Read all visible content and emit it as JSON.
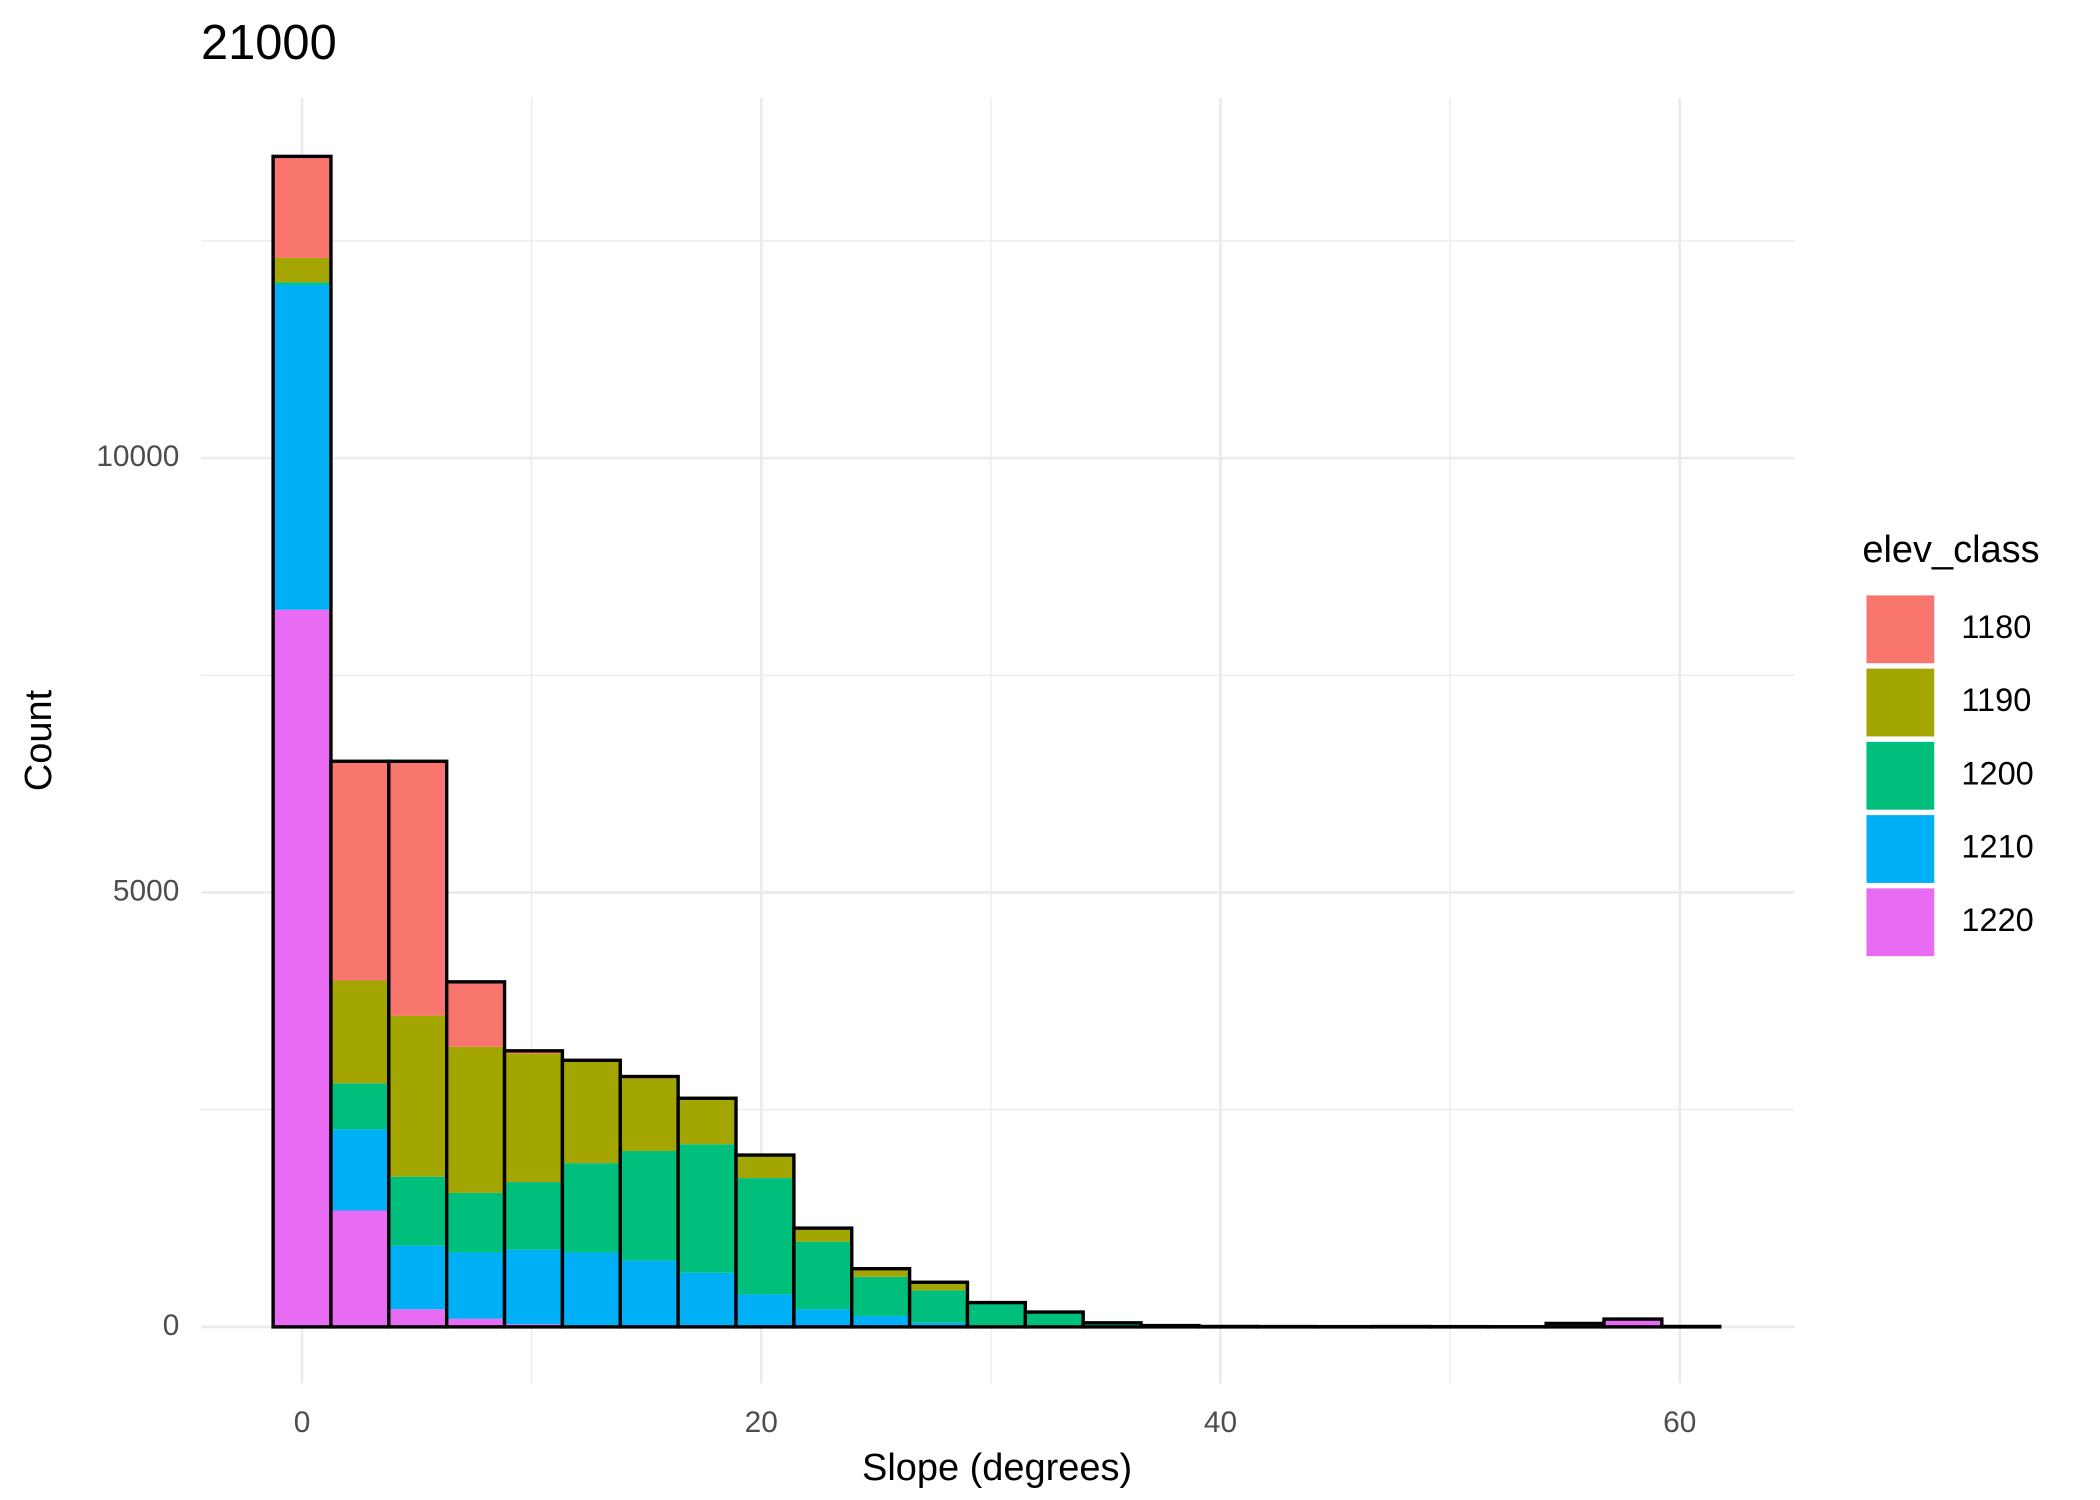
{
  "chart_data": {
    "type": "histogram_stacked",
    "title": "21000",
    "x_label": "Slope (degrees)",
    "y_label": "Count",
    "legend_title": "elev_class",
    "legend_position": "right",
    "grid": true,
    "bins": [
      -1.26,
      1.26,
      3.78,
      6.3,
      8.82,
      11.34,
      13.86,
      16.38,
      18.9,
      21.42,
      23.94,
      26.46,
      28.98,
      31.5,
      34.02,
      36.54,
      39.06,
      41.58,
      44.1,
      46.62,
      49.14,
      51.66,
      54.18,
      56.7,
      59.22,
      61.74
    ],
    "series": [
      {
        "name": "1220",
        "color": "#e76bf3",
        "values": [
          8255,
          1340,
          202,
          93,
          31,
          15,
          0,
          5,
          3,
          0,
          0,
          0,
          0,
          0,
          0,
          0,
          0,
          0,
          0,
          0,
          0,
          0,
          40,
          90,
          5
        ]
      },
      {
        "name": "1210",
        "color": "#00b0f6",
        "values": [
          3739,
          934,
          733,
          764,
          857,
          842,
          763,
          618,
          371,
          202,
          125,
          47,
          10,
          6,
          2,
          0,
          0,
          0,
          0,
          0,
          0,
          0,
          0,
          0,
          0
        ]
      },
      {
        "name": "1200",
        "color": "#00bf7d",
        "values": [
          31,
          530,
          794,
          685,
          779,
          1028,
          1262,
          1480,
          1339,
          779,
          451,
          374,
          270,
          165,
          45,
          15,
          5,
          4,
          3,
          4,
          3,
          2,
          0,
          0,
          0
        ]
      },
      {
        "name": "1190",
        "color": "#a3a500",
        "values": [
          280,
          1184,
          1854,
          1682,
          1479,
          1174,
          837,
          529,
          265,
          156,
          94,
          93,
          0,
          0,
          0,
          0,
          0,
          0,
          0,
          0,
          0,
          0,
          0,
          0,
          0
        ]
      },
      {
        "name": "1180",
        "color": "#f8766d",
        "values": [
          1169,
          2523,
          2928,
          748,
          32,
          10,
          20,
          0,
          0,
          0,
          0,
          0,
          0,
          0,
          0,
          0,
          0,
          0,
          0,
          0,
          0,
          0,
          0,
          0,
          0
        ]
      }
    ],
    "legend_order": [
      4,
      3,
      2,
      1,
      0
    ],
    "xlim": [
      -4.4,
      65
    ],
    "ylim": [
      -650,
      14150
    ],
    "xticks": [
      0,
      20,
      40,
      60
    ],
    "yticks": [
      0,
      5000,
      10000
    ],
    "x_minor_ticks": [
      10,
      30,
      50
    ],
    "y_minor_ticks": [
      2500,
      7500,
      12500
    ]
  }
}
